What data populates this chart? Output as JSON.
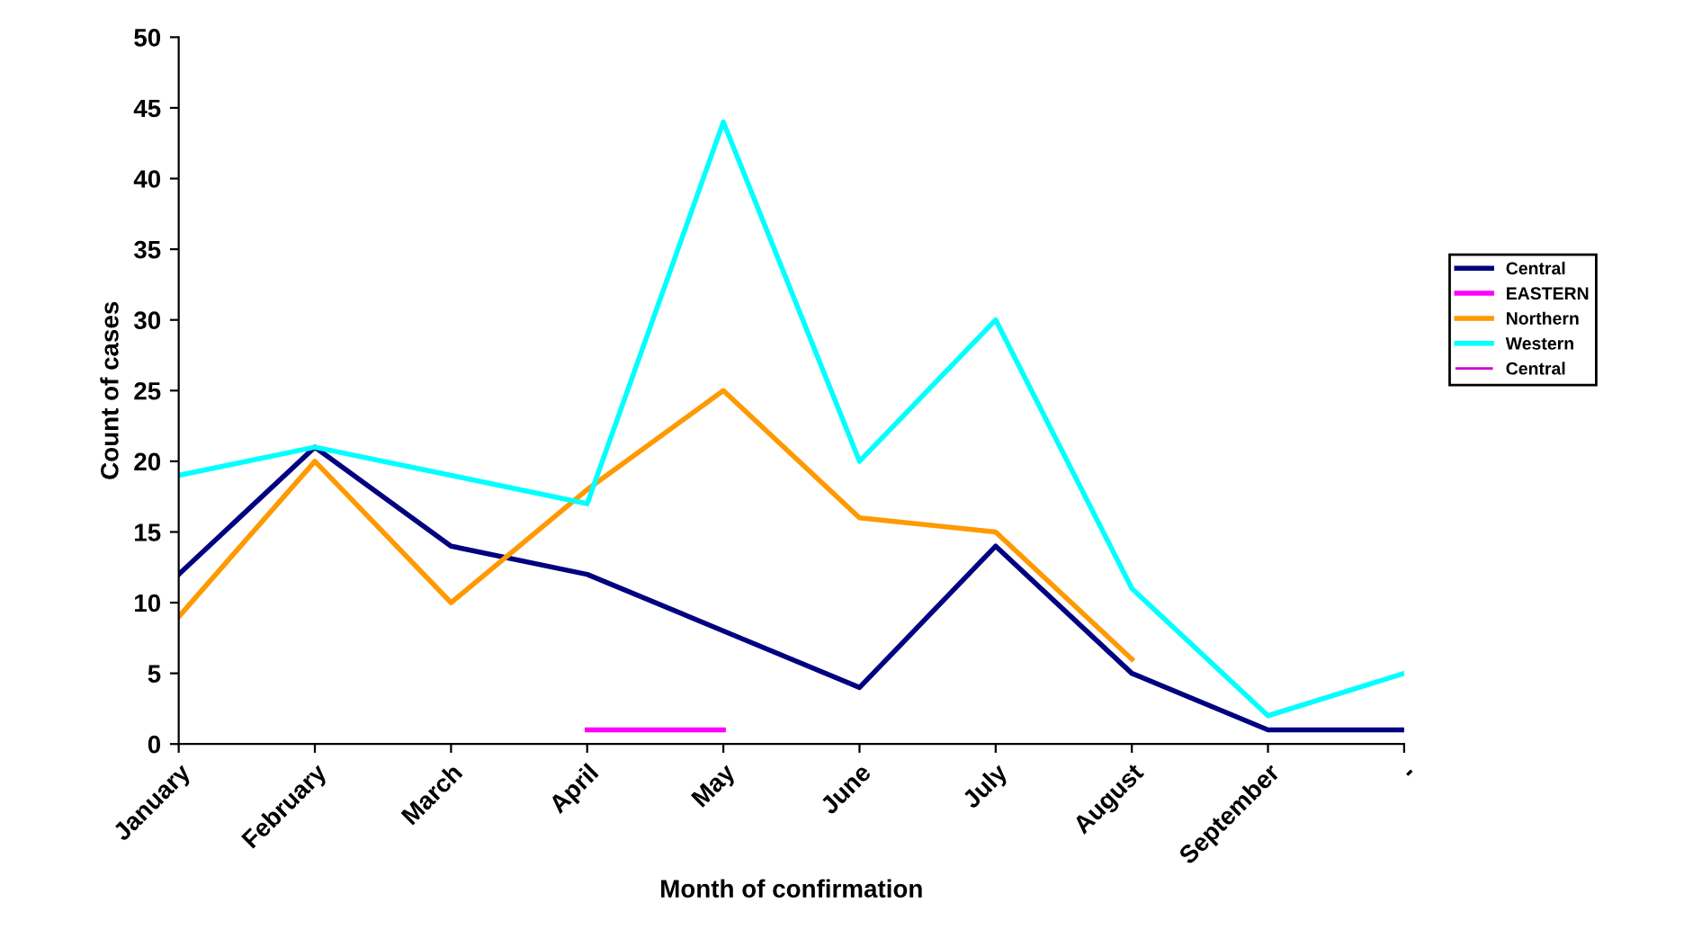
{
  "chart_data": {
    "type": "line",
    "xlabel": "Month of confirmation",
    "ylabel": "Count of cases",
    "categories": [
      "January",
      "February",
      "March",
      "April",
      "May",
      "June",
      "July",
      "August",
      "September",
      "-"
    ],
    "series": [
      {
        "name": "Central",
        "color": "#000080",
        "values": [
          12,
          21,
          14,
          12,
          8,
          4,
          14,
          5,
          1,
          1
        ]
      },
      {
        "name": "EASTERN",
        "color": "#ff00ff",
        "values": [
          null,
          null,
          null,
          1,
          1,
          null,
          null,
          null,
          null,
          null
        ]
      },
      {
        "name": "Northern",
        "color": "#ff9900",
        "values": [
          9,
          20,
          10,
          18,
          25,
          16,
          15,
          6,
          null,
          null
        ]
      },
      {
        "name": "Western",
        "color": "#00ffff",
        "values": [
          19,
          21,
          19,
          17,
          44,
          20,
          30,
          11,
          2,
          5
        ]
      },
      {
        "name": "Central",
        "color": "#cc00cc",
        "values": [
          null,
          null,
          null,
          null,
          null,
          null,
          null,
          null,
          null,
          null
        ]
      }
    ],
    "ylim": [
      0,
      50
    ],
    "yticks": [
      0,
      5,
      10,
      15,
      20,
      25,
      30,
      35,
      40,
      45,
      50
    ],
    "grid": false,
    "legend": "right",
    "marker": "none",
    "line_style": "solid"
  }
}
